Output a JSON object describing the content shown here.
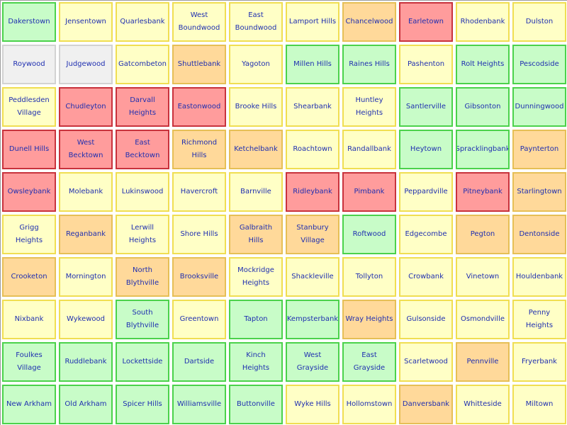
{
  "board": {
    "status_colors": {
      "yellow": "#ffffc6",
      "green": "#c8fcc8",
      "orange": "#ffd99a",
      "red": "#ff9c9c",
      "gray": "#f0f0f0"
    },
    "rows": [
      [
        {
          "name": "Dakerstown",
          "status": "green"
        },
        {
          "name": "Jensentown",
          "status": "yellow"
        },
        {
          "name": "Quarlesbank",
          "status": "yellow"
        },
        {
          "name": "West Boundwood",
          "status": "yellow"
        },
        {
          "name": "East Boundwood",
          "status": "yellow"
        },
        {
          "name": "Lamport Hills",
          "status": "yellow"
        },
        {
          "name": "Chancelwood",
          "status": "orange"
        },
        {
          "name": "Earletown",
          "status": "red"
        },
        {
          "name": "Rhodenbank",
          "status": "yellow"
        },
        {
          "name": "Dulston",
          "status": "yellow"
        }
      ],
      [
        {
          "name": "Roywood",
          "status": "gray"
        },
        {
          "name": "Judgewood",
          "status": "gray"
        },
        {
          "name": "Gatcombeton",
          "status": "yellow"
        },
        {
          "name": "Shuttlebank",
          "status": "orange"
        },
        {
          "name": "Yagoton",
          "status": "yellow"
        },
        {
          "name": "Millen Hills",
          "status": "green"
        },
        {
          "name": "Raines Hills",
          "status": "green"
        },
        {
          "name": "Pashenton",
          "status": "yellow"
        },
        {
          "name": "Rolt Heights",
          "status": "green"
        },
        {
          "name": "Pescodside",
          "status": "green"
        }
      ],
      [
        {
          "name": "Peddlesden Village",
          "status": "yellow"
        },
        {
          "name": "Chudleyton",
          "status": "red"
        },
        {
          "name": "Darvall Heights",
          "status": "red"
        },
        {
          "name": "Eastonwood",
          "status": "red"
        },
        {
          "name": "Brooke Hills",
          "status": "yellow"
        },
        {
          "name": "Shearbank",
          "status": "yellow"
        },
        {
          "name": "Huntley Heights",
          "status": "yellow"
        },
        {
          "name": "Santlerville",
          "status": "green"
        },
        {
          "name": "Gibsonton",
          "status": "green"
        },
        {
          "name": "Dunningwood",
          "status": "green"
        }
      ],
      [
        {
          "name": "Dunell Hills",
          "status": "red"
        },
        {
          "name": "West Becktown",
          "status": "red"
        },
        {
          "name": "East Becktown",
          "status": "red"
        },
        {
          "name": "Richmond Hills",
          "status": "orange"
        },
        {
          "name": "Ketchelbank",
          "status": "orange"
        },
        {
          "name": "Roachtown",
          "status": "yellow"
        },
        {
          "name": "Randallbank",
          "status": "yellow"
        },
        {
          "name": "Heytown",
          "status": "green"
        },
        {
          "name": "Spracklingbank",
          "status": "green"
        },
        {
          "name": "Paynterton",
          "status": "orange"
        }
      ],
      [
        {
          "name": "Owsleybank",
          "status": "red"
        },
        {
          "name": "Molebank",
          "status": "yellow"
        },
        {
          "name": "Lukinswood",
          "status": "yellow"
        },
        {
          "name": "Havercroft",
          "status": "yellow"
        },
        {
          "name": "Barnville",
          "status": "yellow"
        },
        {
          "name": "Ridleybank",
          "status": "red"
        },
        {
          "name": "Pimbank",
          "status": "red"
        },
        {
          "name": "Peppardville",
          "status": "yellow"
        },
        {
          "name": "Pitneybank",
          "status": "red"
        },
        {
          "name": "Starlingtown",
          "status": "orange"
        }
      ],
      [
        {
          "name": "Grigg Heights",
          "status": "yellow"
        },
        {
          "name": "Reganbank",
          "status": "orange"
        },
        {
          "name": "Lerwill Heights",
          "status": "yellow"
        },
        {
          "name": "Shore Hills",
          "status": "yellow"
        },
        {
          "name": "Galbraith Hills",
          "status": "orange"
        },
        {
          "name": "Stanbury Village",
          "status": "orange"
        },
        {
          "name": "Roftwood",
          "status": "green"
        },
        {
          "name": "Edgecombe",
          "status": "yellow"
        },
        {
          "name": "Pegton",
          "status": "orange"
        },
        {
          "name": "Dentonside",
          "status": "orange"
        }
      ],
      [
        {
          "name": "Crooketon",
          "status": "orange"
        },
        {
          "name": "Mornington",
          "status": "yellow"
        },
        {
          "name": "North Blythville",
          "status": "orange"
        },
        {
          "name": "Brooksville",
          "status": "orange"
        },
        {
          "name": "Mockridge Heights",
          "status": "yellow"
        },
        {
          "name": "Shackleville",
          "status": "yellow"
        },
        {
          "name": "Tollyton",
          "status": "yellow"
        },
        {
          "name": "Crowbank",
          "status": "yellow"
        },
        {
          "name": "Vinetown",
          "status": "yellow"
        },
        {
          "name": "Houldenbank",
          "status": "yellow"
        }
      ],
      [
        {
          "name": "Nixbank",
          "status": "yellow"
        },
        {
          "name": "Wykewood",
          "status": "yellow"
        },
        {
          "name": "South Blythville",
          "status": "green"
        },
        {
          "name": "Greentown",
          "status": "yellow"
        },
        {
          "name": "Tapton",
          "status": "green"
        },
        {
          "name": "Kempsterbank",
          "status": "green"
        },
        {
          "name": "Wray Heights",
          "status": "orange"
        },
        {
          "name": "Gulsonside",
          "status": "yellow"
        },
        {
          "name": "Osmondville",
          "status": "yellow"
        },
        {
          "name": "Penny Heights",
          "status": "yellow"
        }
      ],
      [
        {
          "name": "Foulkes Village",
          "status": "green"
        },
        {
          "name": "Ruddlebank",
          "status": "green"
        },
        {
          "name": "Lockettside",
          "status": "green"
        },
        {
          "name": "Dartside",
          "status": "green"
        },
        {
          "name": "Kinch Heights",
          "status": "green"
        },
        {
          "name": "West Grayside",
          "status": "green"
        },
        {
          "name": "East Grayside",
          "status": "green"
        },
        {
          "name": "Scarletwood",
          "status": "yellow"
        },
        {
          "name": "Pennville",
          "status": "orange"
        },
        {
          "name": "Fryerbank",
          "status": "yellow"
        }
      ],
      [
        {
          "name": "New Arkham",
          "status": "green"
        },
        {
          "name": "Old Arkham",
          "status": "green"
        },
        {
          "name": "Spicer Hills",
          "status": "green"
        },
        {
          "name": "Williamsville",
          "status": "green"
        },
        {
          "name": "Buttonville",
          "status": "green"
        },
        {
          "name": "Wyke Hills",
          "status": "yellow"
        },
        {
          "name": "Hollomstown",
          "status": "yellow"
        },
        {
          "name": "Danversbank",
          "status": "orange"
        },
        {
          "name": "Whitteside",
          "status": "yellow"
        },
        {
          "name": "Miltown",
          "status": "yellow"
        }
      ]
    ]
  }
}
